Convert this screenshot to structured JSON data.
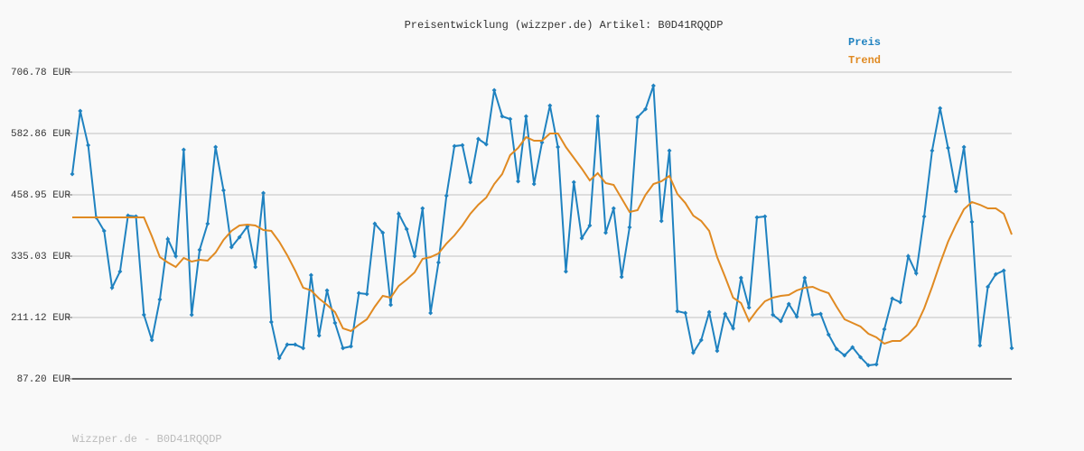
{
  "chart_data": {
    "type": "line",
    "title": "Preisentwicklung (wizzper.de) Artikel: B0D41RQQDP",
    "footer": "Wizzper.de - B0D41RQQDP",
    "legend": "top-right",
    "grid": true,
    "ylim": [
      87.2,
      706.78
    ],
    "yticks": [
      {
        "value": 87.2,
        "label": "87.20 EUR"
      },
      {
        "value": 211.12,
        "label": "211.12 EUR"
      },
      {
        "value": 335.03,
        "label": "335.03 EUR"
      },
      {
        "value": 458.95,
        "label": "458.95 EUR"
      },
      {
        "value": 582.86,
        "label": "582.86 EUR"
      },
      {
        "value": 706.78,
        "label": "706.78 EUR"
      }
    ],
    "series": [
      {
        "name": "Preis",
        "color": "#1f82c0",
        "markers": true,
        "values": [
          500.9,
          628.4,
          559.2,
          413.4,
          386.1,
          271.3,
          304.1,
          417.0,
          415.2,
          216.6,
          165.6,
          247.6,
          369.7,
          335.0,
          550.1,
          216.6,
          347.8,
          400.6,
          555.5,
          468.1,
          353.3,
          373.3,
          395.2,
          313.2,
          462.6,
          202.0,
          129.1,
          156.4,
          156.4,
          149.2,
          296.8,
          174.7,
          265.8,
          200.2,
          149.2,
          152.8,
          260.3,
          258.5,
          400.6,
          382.4,
          236.6,
          420.7,
          389.7,
          335.0,
          431.6,
          220.2,
          322.3,
          457.1,
          557.4,
          559.2,
          484.5,
          571.9,
          561.0,
          670.3,
          617.5,
          612.0,
          486.3,
          617.5,
          480.8,
          564.6,
          639.4,
          555.5,
          304.1,
          484.5,
          371.5,
          397.0,
          617.5,
          382.4,
          431.6,
          293.1,
          393.3,
          615.7,
          632.1,
          679.4,
          406.1,
          548.2,
          223.9,
          220.2,
          140.0,
          165.6,
          222.1,
          143.7,
          218.4,
          189.2,
          291.3,
          231.2,
          413.4,
          415.2,
          216.6,
          203.8,
          238.5,
          212.9,
          291.3,
          216.6,
          218.4,
          176.5,
          147.3,
          134.6,
          151.0,
          130.9,
          114.5,
          116.4,
          187.4,
          249.4,
          242.1,
          335.0,
          300.4,
          415.2,
          548.2,
          633.9,
          553.7,
          466.2,
          555.5,
          404.3,
          154.6,
          273.1,
          298.6,
          305.9,
          149.2
        ]
      },
      {
        "name": "Trend",
        "color": "#e08a22",
        "markers": false,
        "values": [
          413.4,
          413.4,
          413.4,
          413.4,
          413.4,
          413.4,
          413.4,
          413.4,
          413.4,
          413.4,
          375.1,
          333.2,
          322.3,
          313.2,
          331.4,
          324.1,
          327.7,
          325.9,
          342.3,
          367.8,
          386.1,
          397.0,
          398.8,
          397.0,
          387.9,
          386.1,
          364.2,
          336.9,
          305.9,
          271.3,
          265.8,
          249.4,
          236.6,
          222.1,
          189.2,
          183.8,
          196.5,
          207.5,
          233.0,
          254.9,
          251.2,
          274.9,
          287.7,
          302.2,
          329.6,
          333.2,
          340.5,
          360.5,
          376.9,
          397.0,
          420.7,
          438.9,
          453.5,
          480.8,
          500.9,
          539.1,
          553.7,
          575.6,
          568.3,
          568.3,
          582.9,
          582.9,
          555.5,
          533.7,
          511.8,
          488.1,
          502.7,
          482.6,
          479.0,
          451.7,
          424.3,
          428.0,
          458.9,
          480.8,
          486.3,
          497.2,
          460.8,
          442.5,
          417.0,
          406.1,
          386.1,
          333.2,
          293.1,
          251.2,
          240.3,
          203.8,
          225.7,
          243.9,
          251.2,
          254.9,
          256.7,
          265.8,
          271.3,
          273.1,
          265.8,
          260.3,
          233.0,
          207.5,
          200.2,
          192.9,
          178.3,
          171.0,
          158.3,
          163.7,
          163.7,
          176.5,
          194.7,
          229.3,
          273.1,
          320.5,
          364.2,
          398.8,
          429.8,
          444.4,
          438.9,
          431.6,
          431.6,
          420.7,
          378.8
        ]
      }
    ]
  }
}
